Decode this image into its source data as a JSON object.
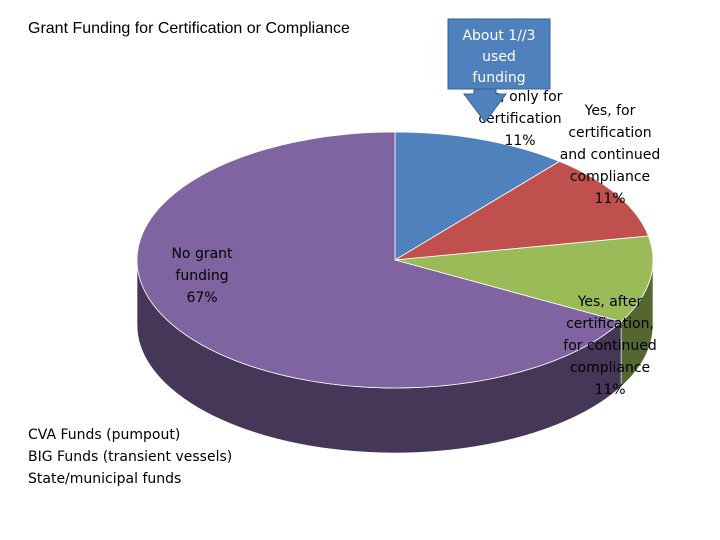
{
  "chart_data": {
    "type": "pie",
    "title": "Grant Funding for Certification or Compliance",
    "slices": [
      {
        "label_lines": [
          "Yes, only for",
          "certification",
          "11%"
        ],
        "value": 11,
        "color": "#4f81bd"
      },
      {
        "label_lines": [
          "Yes, for",
          "certification",
          "and continued",
          "compliance",
          "11%"
        ],
        "value": 11,
        "color": "#c0504d"
      },
      {
        "label_lines": [
          "Yes, after",
          "certification,",
          "for continued",
          "compliance",
          "11%"
        ],
        "value": 11,
        "color": "#9bbb59"
      },
      {
        "label_lines": [
          "No grant",
          "funding",
          "67%"
        ],
        "value": 67,
        "color": "#8064a2"
      }
    ],
    "legend": "none",
    "three_d": true
  },
  "callout": {
    "lines": [
      "About 1//3",
      "used",
      "funding"
    ],
    "color": "#4f81bd"
  },
  "notes": [
    "CVA Funds (pumpout)",
    "BIG Funds (transient vessels)",
    "State/municipal funds"
  ]
}
